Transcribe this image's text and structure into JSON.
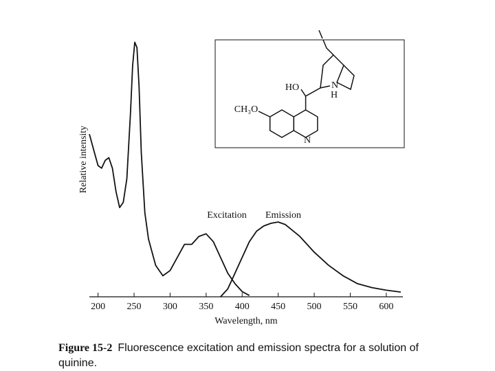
{
  "chart_data": {
    "type": "line",
    "x_label": "Wavelength, nm",
    "y_label": "Relative intensity",
    "caption_label": "Figure 15-2",
    "caption": "Fluorescence excitation and emission spectra for a solution of quinine.",
    "inset_labels": [
      "HO",
      "H",
      "N",
      "N",
      "CH₃O"
    ],
    "xlim": [
      188,
      623
    ],
    "xticks": [
      200,
      250,
      300,
      350,
      400,
      450,
      500,
      550,
      600
    ],
    "ylim": [
      0,
      100
    ],
    "color": "#111111",
    "series": [
      {
        "name": "Excitation",
        "x": [
          188,
          195,
          200,
          205,
          210,
          215,
          220,
          225,
          230,
          235,
          240,
          245,
          248,
          251,
          254,
          257,
          260,
          265,
          270,
          280,
          290,
          300,
          310,
          320,
          330,
          340,
          350,
          360,
          370,
          380,
          390,
          400,
          410
        ],
        "values": [
          62,
          55,
          50,
          49,
          52,
          53,
          49,
          40,
          34,
          36,
          45,
          70,
          88,
          97,
          95,
          80,
          55,
          32,
          22,
          12,
          8,
          10,
          15,
          20,
          20,
          23,
          24,
          21,
          15,
          9,
          5,
          2,
          0.5
        ]
      },
      {
        "name": "Emission",
        "x": [
          370,
          380,
          390,
          400,
          410,
          420,
          430,
          440,
          450,
          460,
          480,
          500,
          520,
          540,
          560,
          580,
          600,
          620
        ],
        "values": [
          0,
          3,
          9,
          15,
          21,
          25,
          27,
          28,
          28.5,
          27.5,
          23,
          17,
          12,
          8,
          5,
          3.5,
          2.5,
          1.8
        ]
      }
    ]
  }
}
